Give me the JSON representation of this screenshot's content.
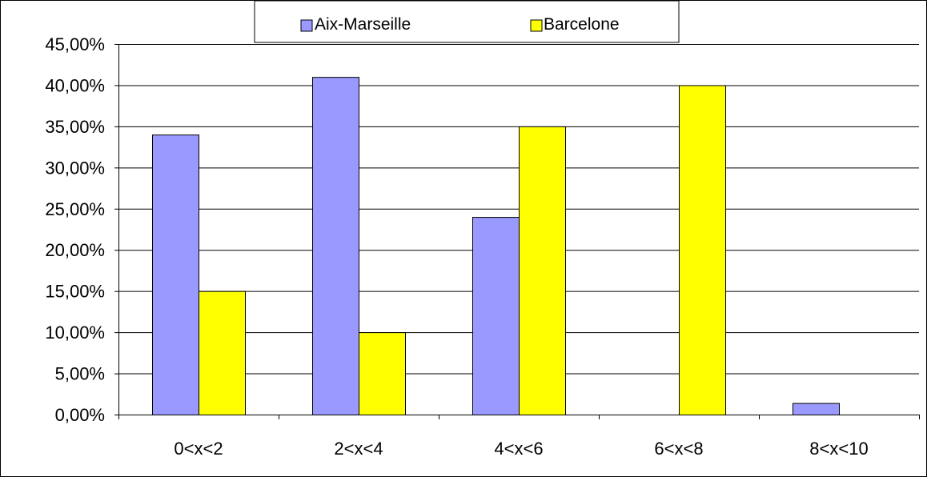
{
  "chart_data": {
    "type": "bar",
    "title": "",
    "xlabel": "",
    "ylabel": "",
    "categories": [
      "0<x<2",
      "2<x<4",
      "4<x<6",
      "6<x<8",
      "8<x<10"
    ],
    "series": [
      {
        "name": "Aix-Marseille",
        "values": [
          34,
          41,
          24,
          0,
          1.4
        ]
      },
      {
        "name": "Barcelone",
        "values": [
          15,
          10,
          35,
          40,
          0
        ]
      }
    ],
    "ylim": [
      0,
      45
    ],
    "yticks": [
      0,
      5,
      10,
      15,
      20,
      25,
      30,
      35,
      40,
      45
    ],
    "ytick_labels": [
      "0,00%",
      "5,00%",
      "10,00%",
      "15,00%",
      "20,00%",
      "25,00%",
      "30,00%",
      "35,00%",
      "40,00%",
      "45,00%"
    ],
    "grid": true,
    "legend": "top-center",
    "colors": {
      "Aix-Marseille": "#9999ff",
      "Barcelone": "#ffff00",
      "gridline": "#000000",
      "border": "#000000"
    }
  }
}
